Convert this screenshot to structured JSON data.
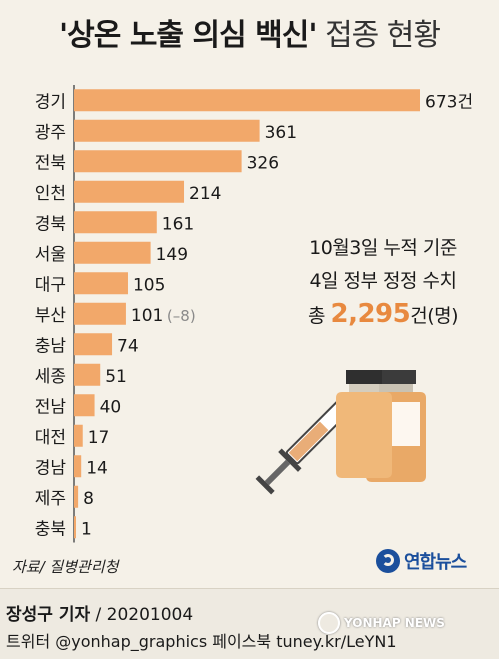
{
  "title": {
    "main": "'상온 노출 의심 백신'",
    "sub": "접종 현황"
  },
  "chart_data": {
    "type": "bar",
    "orientation": "horizontal",
    "title": "'상온 노출 의심 백신' 접종 현황",
    "categories": [
      "경기",
      "광주",
      "전북",
      "인천",
      "경북",
      "서울",
      "대구",
      "부산",
      "충남",
      "세종",
      "전남",
      "대전",
      "경남",
      "제주",
      "충북"
    ],
    "values": [
      673,
      361,
      326,
      214,
      161,
      149,
      105,
      101,
      74,
      51,
      40,
      17,
      14,
      8,
      1
    ],
    "value_labels": [
      "673건",
      "361",
      "326",
      "214",
      "161",
      "149",
      "105",
      "101",
      "74",
      "51",
      "40",
      "17",
      "14",
      "8",
      "1"
    ],
    "annotations": [
      {
        "category": "부산",
        "text": "(–8)"
      }
    ],
    "bar_color": "#f2a86a",
    "axis_color": "#555555",
    "xlim": [
      0,
      673
    ]
  },
  "annotation": {
    "line1": "10월3일 누적 기준",
    "line2": "4일 정부 정정 수치",
    "total_prefix": "총",
    "total_value": "2,295",
    "total_suffix": "건(명)"
  },
  "source": "자료/ 질병관리청",
  "logo": {
    "text": "연합뉴스",
    "icon": "yonhap-logo-icon"
  },
  "footer": {
    "reporter_name": "장성구 기자",
    "reporter_date": " / 20201004",
    "social": "트위터 @yonhap_graphics  페이스북 tuney.kr/LeYN1",
    "watermark": "YONHAP NEWS"
  },
  "illustration": {
    "icon": "vaccine-syringe-vials-icon"
  }
}
